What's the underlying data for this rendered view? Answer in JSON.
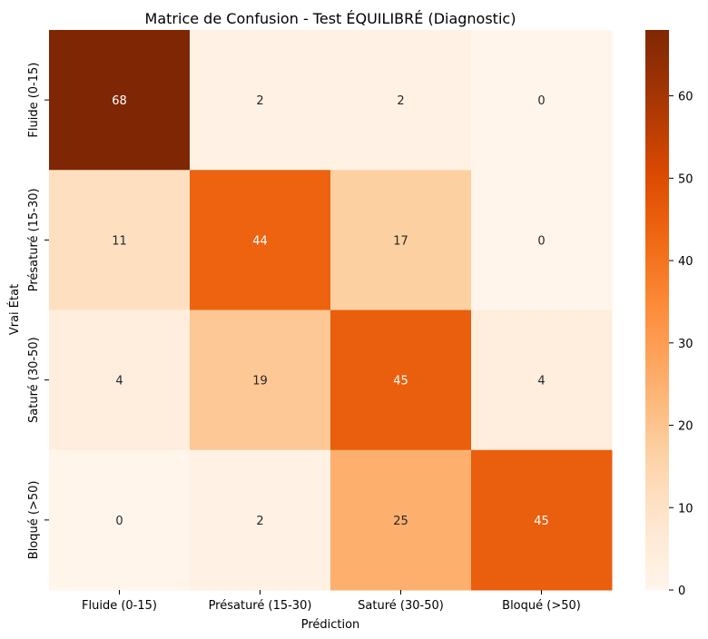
{
  "chart_data": {
    "type": "heatmap",
    "title": "Matrice de Confusion - Test ÉQUILIBRÉ (Diagnostic)",
    "xlabel": "Prédiction",
    "ylabel": "Vrai État",
    "x_categories": [
      "Fluide (0-15)",
      "Présaturé (15-30)",
      "Saturé (30-50)",
      "Bloqué (>50)"
    ],
    "y_categories": [
      "Fluide (0-15)",
      "Présaturé (15-30)",
      "Saturé (30-50)",
      "Bloqué (>50)"
    ],
    "matrix": [
      [
        68,
        2,
        2,
        0
      ],
      [
        11,
        44,
        17,
        0
      ],
      [
        4,
        19,
        45,
        4
      ],
      [
        0,
        2,
        25,
        45
      ]
    ],
    "colorbar": {
      "min": 0,
      "max": 68,
      "ticks": [
        0,
        10,
        20,
        30,
        40,
        50,
        60
      ],
      "colormap": "Oranges"
    },
    "grid": false
  }
}
